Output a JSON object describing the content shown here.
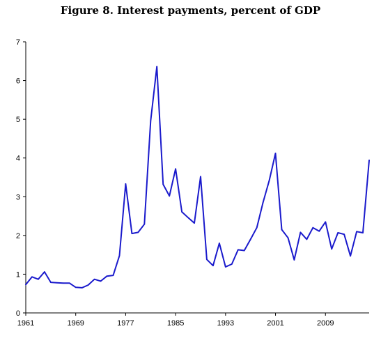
{
  "chart_data": {
    "type": "line",
    "title": "Figure 8. Interest payments, percent of GDP",
    "xlabel": "",
    "ylabel": "",
    "xlim": [
      1961,
      2016
    ],
    "ylim": [
      0,
      7
    ],
    "x_tick_labels": [
      "1961",
      "1969",
      "1977",
      "1985",
      "1993",
      "2001",
      "2009"
    ],
    "y_tick_labels": [
      "0",
      "1",
      "2",
      "3",
      "4",
      "5",
      "6",
      "7"
    ],
    "x_ticks": [
      1961,
      1969,
      1977,
      1985,
      1993,
      2001,
      2009
    ],
    "y_ticks": [
      0,
      1,
      2,
      3,
      4,
      5,
      6,
      7
    ],
    "grid": false,
    "legend": "none",
    "color": "#1a1acc",
    "x": [
      1961,
      1962,
      1963,
      1964,
      1965,
      1966,
      1967,
      1968,
      1969,
      1970,
      1971,
      1972,
      1973,
      1974,
      1975,
      1976,
      1977,
      1978,
      1979,
      1980,
      1981,
      1982,
      1983,
      1984,
      1985,
      1986,
      1987,
      1988,
      1989,
      1990,
      1991,
      1992,
      1993,
      1994,
      1995,
      1996,
      1997,
      1998,
      1999,
      2000,
      2001,
      2002,
      2003,
      2004,
      2005,
      2006,
      2007,
      2008,
      2009,
      2010,
      2011,
      2012,
      2013,
      2014,
      2015,
      2016
    ],
    "y": [
      0.73,
      0.93,
      0.87,
      1.06,
      0.79,
      0.78,
      0.77,
      0.77,
      0.66,
      0.65,
      0.72,
      0.87,
      0.82,
      0.95,
      0.97,
      1.48,
      3.33,
      2.05,
      2.08,
      2.29,
      4.96,
      6.36,
      3.32,
      3.02,
      3.72,
      2.61,
      2.46,
      2.32,
      3.52,
      1.38,
      1.22,
      1.8,
      1.19,
      1.26,
      1.63,
      1.61,
      1.9,
      2.2,
      2.85,
      3.42,
      4.12,
      2.15,
      1.94,
      1.37,
      2.08,
      1.9,
      2.2,
      2.11,
      2.35,
      1.65,
      2.07,
      2.03,
      1.47,
      2.1,
      2.07,
      3.94
    ]
  }
}
